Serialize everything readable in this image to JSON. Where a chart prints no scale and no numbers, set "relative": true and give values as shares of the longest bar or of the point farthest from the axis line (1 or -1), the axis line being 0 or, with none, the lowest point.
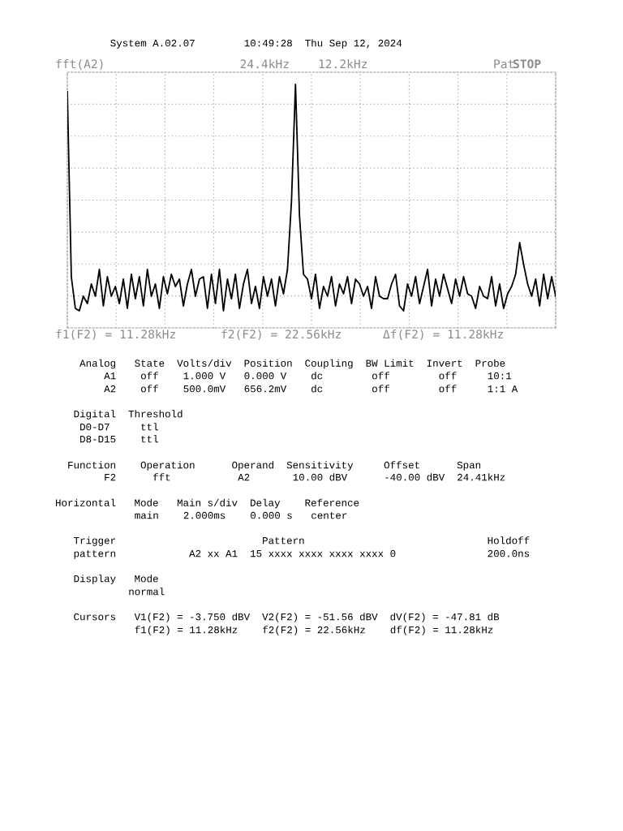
{
  "chart_data": {
    "type": "line",
    "relative": true,
    "color": "#000000",
    "line_style": "solid",
    "marker": "none",
    "grid": true,
    "categories": [
      null,
      null,
      null,
      null,
      null,
      null,
      null,
      null,
      null,
      null,
      null,
      null,
      null,
      null,
      null,
      null,
      null,
      null,
      null,
      null,
      null,
      null,
      null,
      null,
      null,
      null,
      null,
      null,
      null,
      null,
      null,
      null,
      null,
      null,
      null,
      null,
      null,
      null,
      null,
      null,
      null,
      null,
      null,
      null,
      null,
      null,
      null,
      null,
      null,
      null,
      null,
      null,
      null,
      null,
      null,
      null,
      null,
      null,
      null,
      null,
      null,
      null,
      null,
      null,
      null,
      null,
      null,
      null,
      null,
      null,
      null,
      null,
      null,
      null,
      null,
      null,
      null,
      null,
      null,
      null,
      null,
      null,
      null,
      null,
      null,
      null,
      null,
      null,
      null,
      null,
      null,
      null,
      null,
      null,
      null,
      null,
      null,
      null,
      null,
      null,
      null,
      null,
      null,
      null,
      null,
      null,
      null,
      null,
      null,
      null,
      null,
      null,
      null,
      null,
      null,
      null,
      null,
      null,
      null,
      null,
      null,
      null,
      null
    ],
    "values": [
      0.97,
      0.21,
      0.08,
      0.07,
      0.13,
      0.1,
      0.18,
      0.13,
      0.24,
      0.09,
      0.21,
      0.13,
      0.17,
      0.1,
      0.2,
      0.08,
      0.22,
      0.12,
      0.21,
      0.09,
      0.24,
      0.13,
      0.18,
      0.08,
      0.21,
      0.14,
      0.22,
      0.17,
      0.2,
      0.09,
      0.18,
      0.24,
      0.13,
      0.2,
      0.21,
      0.08,
      0.22,
      0.1,
      0.24,
      0.07,
      0.2,
      0.12,
      0.22,
      0.08,
      0.18,
      0.24,
      0.1,
      0.17,
      0.08,
      0.21,
      0.13,
      0.2,
      0.09,
      0.21,
      0.14,
      0.24,
      0.52,
      1.0,
      0.46,
      0.22,
      0.2,
      0.12,
      0.22,
      0.08,
      0.17,
      0.13,
      0.21,
      0.09,
      0.18,
      0.14,
      0.21,
      0.1,
      0.2,
      0.18,
      0.13,
      0.17,
      0.08,
      0.21,
      0.13,
      0.12,
      0.12,
      0.18,
      0.22,
      0.09,
      0.07,
      0.18,
      0.13,
      0.21,
      0.1,
      0.17,
      0.24,
      0.09,
      0.2,
      0.13,
      0.22,
      0.16,
      0.1,
      0.2,
      0.13,
      0.21,
      0.14,
      0.13,
      0.08,
      0.17,
      0.13,
      0.12,
      0.21,
      0.09,
      0.18,
      0.08,
      0.14,
      0.17,
      0.22,
      0.35,
      0.26,
      0.18,
      0.13,
      0.2,
      0.09,
      0.22,
      0.12,
      0.21,
      0.13
    ],
    "annotations": [
      "System A.02.07        10:49:28  Thu Sep 12, 2024",
      "fft(A2)",
      "24.4kHz",
      "12.2kHz",
      "Pat",
      "STOP",
      "f1(F2) = 11.28kHz",
      "f2(F2) = 22.56kHz",
      "Δf(F2) = 11.28kHz",
      "Analog   State  Volts/div  Position  Coupling  BW Limit  Invert  Probe",
      "A1    off    1.000 V   0.000 V    dc        off        off     10:1",
      "A2    off    500.0mV   656.2mV    dc        off        off     1:1 A",
      "Digital  Threshold",
      "D0-D7     ttl",
      "D8-D15    ttl",
      "Function    Operation      Operand  Sensitivity     Offset      Span",
      "F2      fft           A2       10.00 dBV      -40.00 dBV  24.41kHz",
      "Horizontal   Mode   Main s/div  Delay    Reference",
      "main    2.000ms    0.000 s   center",
      "Trigger                        Pattern                              Holdoff",
      "pattern            A2 xx A1  15 xxxx xxxx xxxx xxxx 0               200.0ns",
      "Display   Mode",
      "normal",
      "Cursors   V1(F2) = -3.750 dBV  V2(F2) = -51.56 dBV  dV(F2) = -47.81 dB",
      "f1(F2) = 11.28kHz    f2(F2) = 22.56kHz    df(F2) = 11.28kHz"
    ]
  }
}
